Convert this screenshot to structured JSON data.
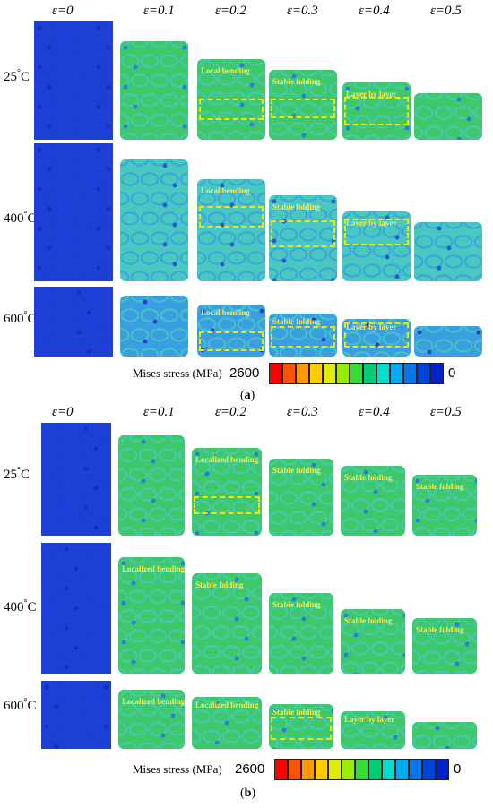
{
  "strain_headers": [
    "ε=0",
    "ε=0.1",
    "ε=0.2",
    "ε=0.3",
    "ε=0.4",
    "ε=0.5"
  ],
  "temperatures": [
    "25",
    "400",
    "600"
  ],
  "temp_unit": "°C",
  "panel_a": {
    "caption_letter": "a",
    "annotations": {
      "r0": [
        "",
        "",
        "Local bending",
        "Stable folding",
        "Layer by layer",
        ""
      ],
      "r1": [
        "",
        "",
        "Local bending",
        "Stable folding",
        "Layer by layer",
        ""
      ],
      "r2": [
        "",
        "",
        "Local bending",
        "Stable folding",
        "Layer by layer",
        ""
      ]
    }
  },
  "panel_b": {
    "caption_letter": "b",
    "annotations": {
      "r0": [
        "",
        "",
        "Localized bending",
        "Stable folding",
        "Stable folding",
        "Stable folding"
      ],
      "r1": [
        "",
        "Localized bending",
        "Stable folding",
        "Stable folding",
        "Stable folding",
        "Stable folding"
      ],
      "r2": [
        "",
        "Localized bending",
        "Localized bending",
        "Stable folding",
        "Layer by layer",
        ""
      ]
    }
  },
  "legend": {
    "label": "Mises stress (MPa)",
    "max": "2600",
    "min": "0",
    "colors": [
      "#ff0000",
      "#ff5500",
      "#ff9900",
      "#ffcc00",
      "#ddee00",
      "#99ee00",
      "#33dd33",
      "#00cc77",
      "#00ddcc",
      "#00aaee",
      "#0077ee",
      "#0044dd",
      "#0022cc"
    ]
  },
  "palette": {
    "undeformed": "#1c3fd8",
    "undeformed_cell": "#2040cc",
    "green": "#3fc86a",
    "cyan": "#48c8c0",
    "blue_mix": "#3a9fe0",
    "annotation": "#ffe94a"
  }
}
